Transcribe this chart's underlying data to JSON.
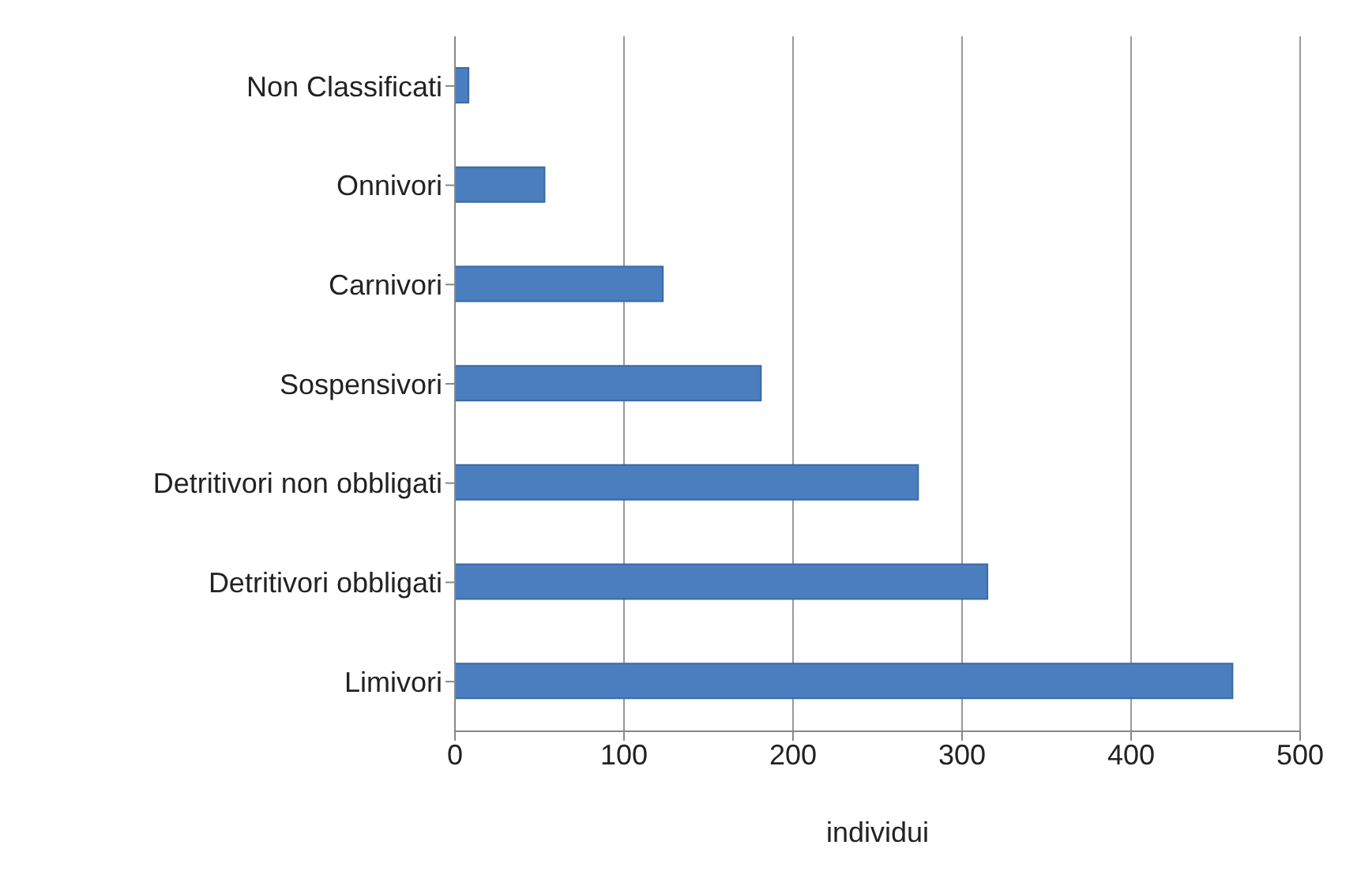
{
  "chart_data": {
    "type": "bar",
    "orientation": "horizontal",
    "categories": [
      "Non Classificati",
      "Onnivori",
      "Carnivori",
      "Sospensivori",
      "Detritivori non obbligati",
      "Detritivori obbligati",
      "Limivori"
    ],
    "values": [
      8,
      53,
      123,
      181,
      274,
      315,
      460
    ],
    "color": "#4a7ebf",
    "xlim": [
      0,
      500
    ],
    "xticks": [
      0,
      100,
      200,
      300,
      400,
      500
    ],
    "grid": "x",
    "xlabel": "individui"
  }
}
